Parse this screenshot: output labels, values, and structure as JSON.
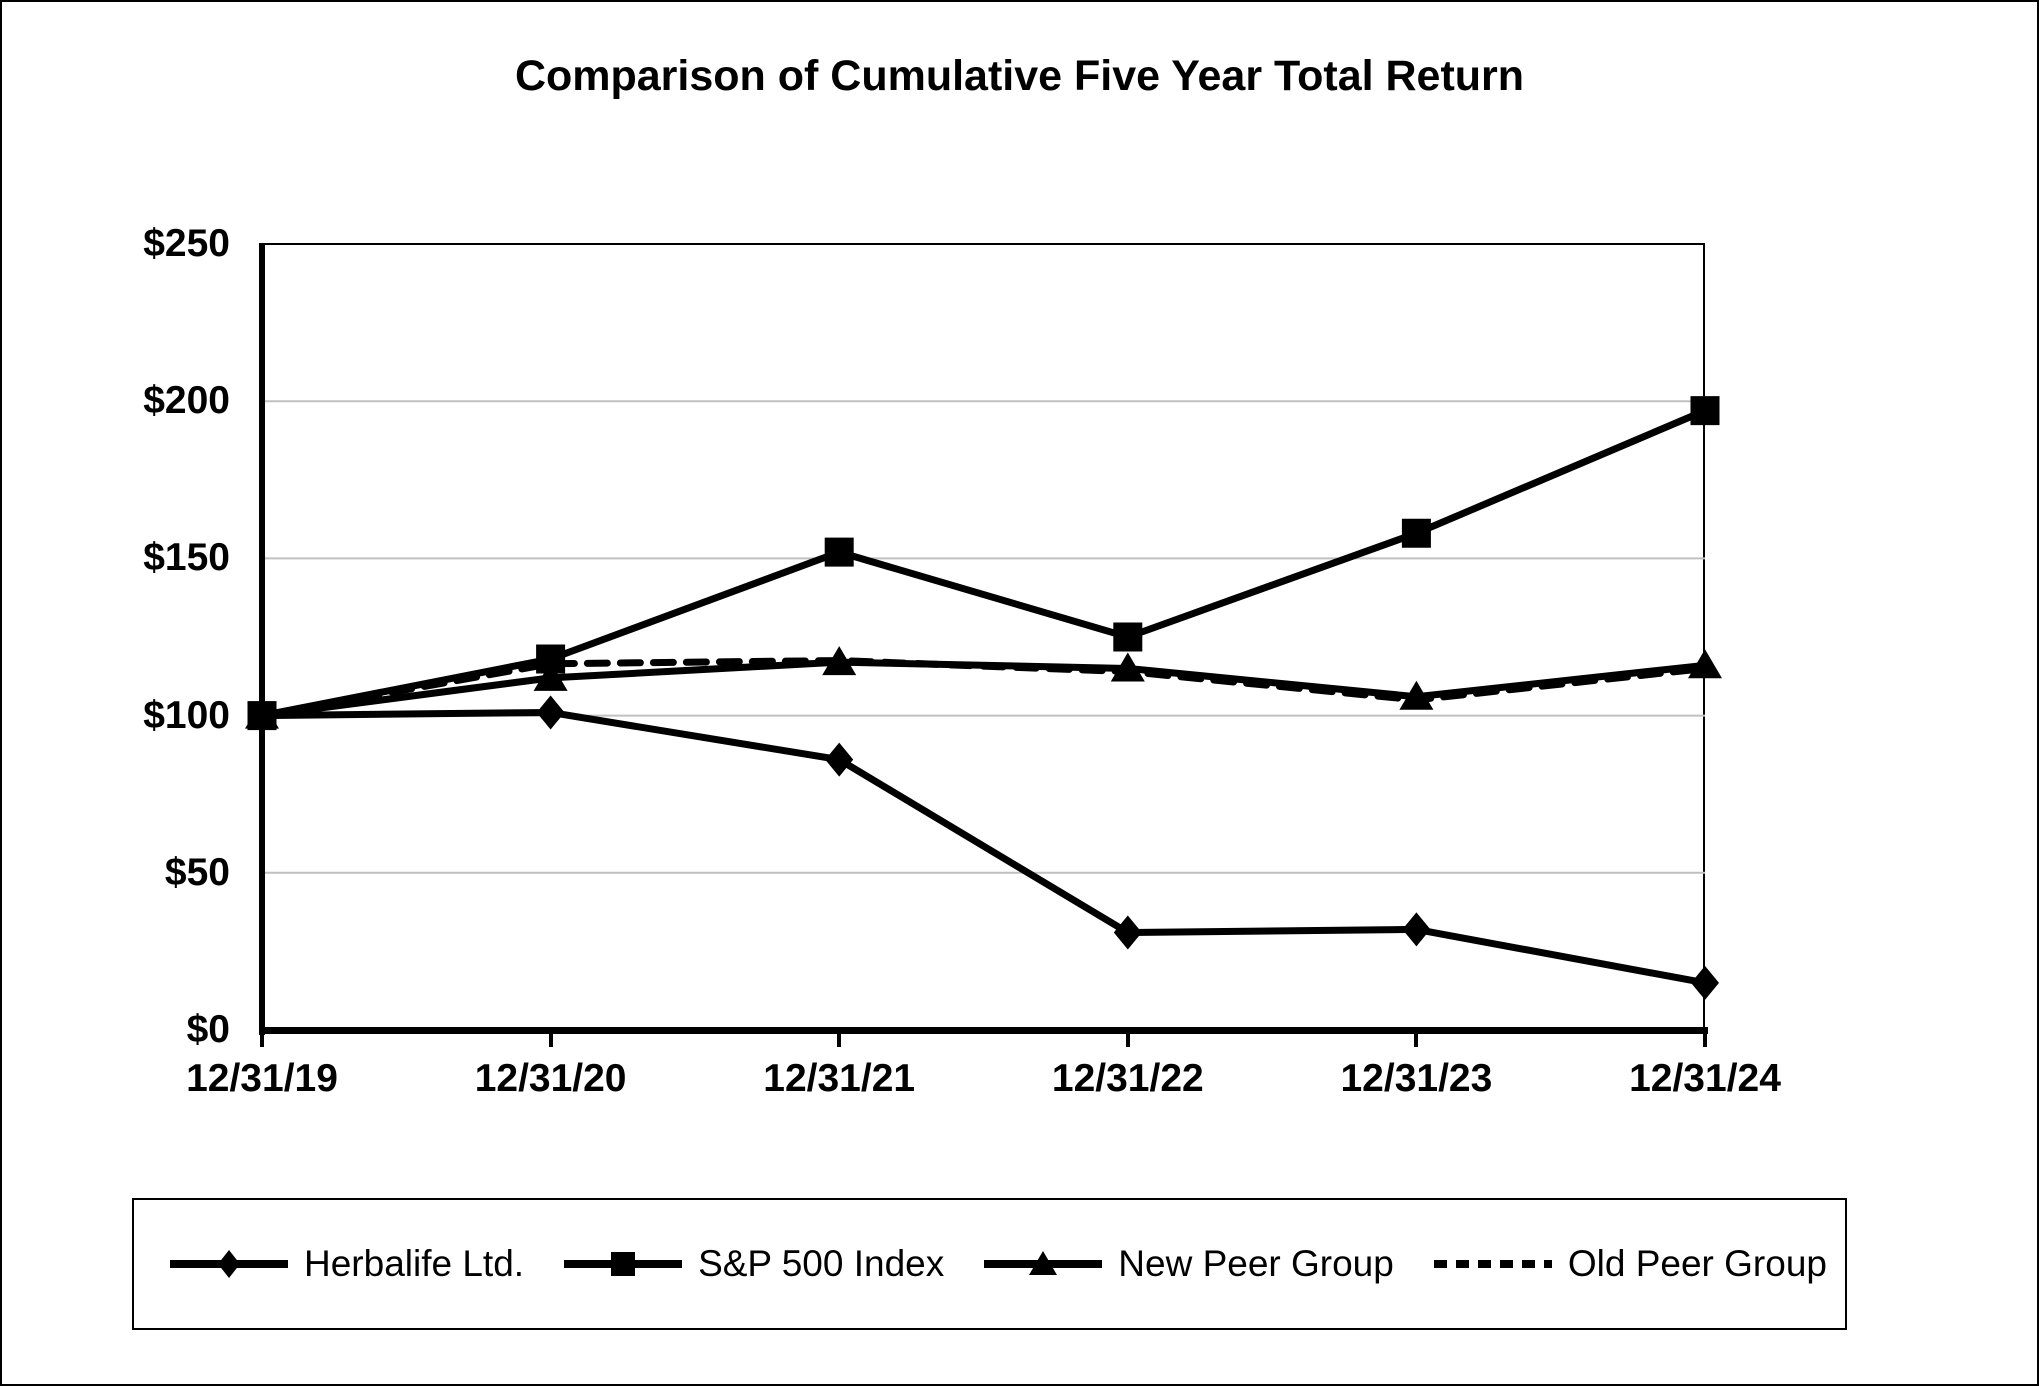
{
  "title": "Comparison of Cumulative Five Year Total Return",
  "colors": {
    "series": "#000000",
    "gridline": "#c0c0c0",
    "background": "#ffffff",
    "text": "#000000"
  },
  "chart_data": {
    "type": "line",
    "title": "Comparison of Cumulative Five Year Total Return",
    "x_labels": [
      "12/31/19",
      "12/31/20",
      "12/31/21",
      "12/31/22",
      "12/31/23",
      "12/31/24"
    ],
    "y_tick_labels": [
      "$0",
      "$50",
      "$100",
      "$150",
      "$200",
      "$250"
    ],
    "y_tick_values": [
      0,
      50,
      100,
      150,
      200,
      250
    ],
    "ylim": [
      0,
      250
    ],
    "grid": true,
    "legend_position": "bottom",
    "series": [
      {
        "name": "Herbalife Ltd.",
        "marker": "diamond",
        "line_style": "solid",
        "values": [
          100,
          101,
          86,
          31,
          32,
          15
        ]
      },
      {
        "name": "S&P 500 Index",
        "marker": "square",
        "line_style": "solid",
        "values": [
          100,
          118,
          152,
          125,
          158,
          197
        ]
      },
      {
        "name": "New Peer Group",
        "marker": "triangle",
        "line_style": "solid",
        "values": [
          100,
          112,
          117,
          115,
          106,
          116
        ]
      },
      {
        "name": "Old Peer Group",
        "marker": "none",
        "line_style": "dashed",
        "values": [
          100,
          116.5,
          117.5,
          114,
          105,
          115
        ]
      }
    ]
  }
}
